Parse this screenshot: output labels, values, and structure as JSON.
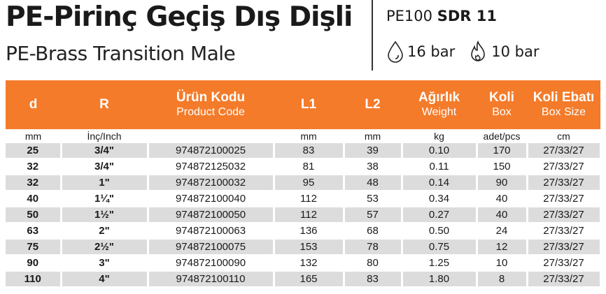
{
  "header": {
    "title": "PE-Pirinç Geçiş Dış Dişli",
    "subtitle": "PE-Brass Transition Male",
    "spec_prefix": "PE100",
    "spec_bold": "SDR 11",
    "pressure_water": "16 bar",
    "pressure_gas": "10 bar",
    "icon_water": "water-drop-icon",
    "icon_gas": "flame-icon"
  },
  "colors": {
    "header_bg": "#f47b2a",
    "stripe": "#dcdcdc"
  },
  "table": {
    "columns": [
      {
        "tr": "d",
        "en": ""
      },
      {
        "tr": "R",
        "en": ""
      },
      {
        "tr": "Ürün Kodu",
        "en": "Product Code"
      },
      {
        "tr": "L1",
        "en": ""
      },
      {
        "tr": "L2",
        "en": ""
      },
      {
        "tr": "Ağırlık",
        "en": "Weight"
      },
      {
        "tr": "Koli",
        "en": "Box"
      },
      {
        "tr": "Koli Ebatı",
        "en": "Box Size"
      }
    ],
    "units": [
      "mm",
      "İnç/Inch",
      "",
      "mm",
      "mm",
      "kg",
      "adet/pcs",
      "cm"
    ],
    "rows": [
      [
        "25",
        "3/4\"",
        "974872100025",
        "83",
        "39",
        "0.10",
        "170",
        "27/33/27"
      ],
      [
        "32",
        "3/4\"",
        "974872125032",
        "81",
        "38",
        "0.11",
        "150",
        "27/33/27"
      ],
      [
        "32",
        "1\"",
        "974872100032",
        "95",
        "48",
        "0.14",
        "90",
        "27/33/27"
      ],
      [
        "40",
        "1¼\"",
        "974872100040",
        "112",
        "53",
        "0.34",
        "40",
        "27/33/27"
      ],
      [
        "50",
        "1½\"",
        "974872100050",
        "112",
        "57",
        "0.27",
        "40",
        "27/33/27"
      ],
      [
        "63",
        "2\"",
        "974872100063",
        "136",
        "68",
        "0.50",
        "24",
        "27/33/27"
      ],
      [
        "75",
        "2½\"",
        "974872100075",
        "153",
        "78",
        "0.75",
        "12",
        "27/33/27"
      ],
      [
        "90",
        "3\"",
        "974872100090",
        "132",
        "80",
        "1.25",
        "10",
        "27/33/27"
      ],
      [
        "110",
        "4\"",
        "974872100110",
        "165",
        "83",
        "1.80",
        "8",
        "27/33/27"
      ]
    ]
  }
}
